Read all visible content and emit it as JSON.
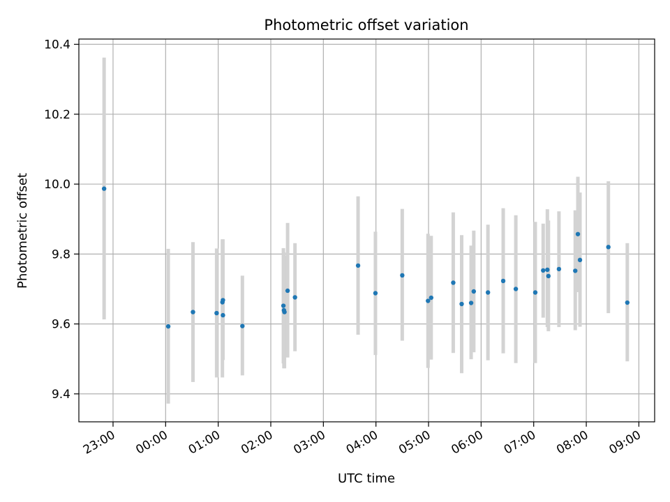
{
  "chart_data": {
    "type": "scatter",
    "title": "Photometric offset variation",
    "xlabel": "UTC time",
    "ylabel": "Photometric offset",
    "x_units": "hours relative to 00:00 UTC",
    "xlim": [
      -1.65,
      9.3
    ],
    "ylim": [
      9.32,
      10.415
    ],
    "x_ticks": [
      {
        "value": -1,
        "label": "23:00"
      },
      {
        "value": 0,
        "label": "00:00"
      },
      {
        "value": 1,
        "label": "01:00"
      },
      {
        "value": 2,
        "label": "02:00"
      },
      {
        "value": 3,
        "label": "03:00"
      },
      {
        "value": 4,
        "label": "04:00"
      },
      {
        "value": 5,
        "label": "05:00"
      },
      {
        "value": 6,
        "label": "06:00"
      },
      {
        "value": 7,
        "label": "07:00"
      },
      {
        "value": 8,
        "label": "08:00"
      },
      {
        "value": 9,
        "label": "09:00"
      }
    ],
    "y_ticks": [
      {
        "value": 9.4,
        "label": "9.4"
      },
      {
        "value": 9.6,
        "label": "9.6"
      },
      {
        "value": 9.8,
        "label": "9.8"
      },
      {
        "value": 10.0,
        "label": "10.0"
      },
      {
        "value": 10.2,
        "label": "10.2"
      },
      {
        "value": 10.4,
        "label": "10.4"
      }
    ],
    "grid": true,
    "colors": {
      "points": "#1f77b4",
      "errorbars": "#d3d3d3",
      "grid": "#b0b0b0",
      "axes": "#000000"
    },
    "points": [
      {
        "x": -1.17,
        "y": 9.987,
        "lo": 9.613,
        "hi": 10.362
      },
      {
        "x": 0.05,
        "y": 9.593,
        "lo": 9.372,
        "hi": 9.815
      },
      {
        "x": 0.52,
        "y": 9.634,
        "lo": 9.434,
        "hi": 9.834
      },
      {
        "x": 0.97,
        "y": 9.631,
        "lo": 9.447,
        "hi": 9.816
      },
      {
        "x": 1.08,
        "y": 9.662,
        "lo": 9.447,
        "hi": 9.842
      },
      {
        "x": 1.09,
        "y": 9.668,
        "lo": 9.497,
        "hi": 9.842
      },
      {
        "x": 1.09,
        "y": 9.625,
        "lo": 9.497,
        "hi": 9.797
      },
      {
        "x": 1.46,
        "y": 9.594,
        "lo": 9.453,
        "hi": 9.738
      },
      {
        "x": 2.24,
        "y": 9.652,
        "lo": 9.487,
        "hi": 9.817
      },
      {
        "x": 2.25,
        "y": 9.639,
        "lo": 9.473,
        "hi": 9.805
      },
      {
        "x": 2.26,
        "y": 9.634,
        "lo": 9.473,
        "hi": 9.795
      },
      {
        "x": 2.32,
        "y": 9.695,
        "lo": 9.504,
        "hi": 9.889
      },
      {
        "x": 2.46,
        "y": 9.676,
        "lo": 9.522,
        "hi": 9.831
      },
      {
        "x": 3.66,
        "y": 9.767,
        "lo": 9.569,
        "hi": 9.965
      },
      {
        "x": 3.99,
        "y": 9.688,
        "lo": 9.511,
        "hi": 9.864
      },
      {
        "x": 4.5,
        "y": 9.739,
        "lo": 9.552,
        "hi": 9.929
      },
      {
        "x": 4.99,
        "y": 9.666,
        "lo": 9.474,
        "hi": 9.858
      },
      {
        "x": 5.05,
        "y": 9.675,
        "lo": 9.498,
        "hi": 9.852
      },
      {
        "x": 5.47,
        "y": 9.718,
        "lo": 9.517,
        "hi": 9.919
      },
      {
        "x": 5.63,
        "y": 9.657,
        "lo": 9.459,
        "hi": 9.854
      },
      {
        "x": 5.81,
        "y": 9.66,
        "lo": 9.499,
        "hi": 9.824
      },
      {
        "x": 5.86,
        "y": 9.693,
        "lo": 9.519,
        "hi": 9.867
      },
      {
        "x": 6.13,
        "y": 9.69,
        "lo": 9.496,
        "hi": 9.884
      },
      {
        "x": 6.42,
        "y": 9.723,
        "lo": 9.516,
        "hi": 9.931
      },
      {
        "x": 6.66,
        "y": 9.7,
        "lo": 9.488,
        "hi": 9.911
      },
      {
        "x": 7.03,
        "y": 9.69,
        "lo": 9.488,
        "hi": 9.892
      },
      {
        "x": 7.18,
        "y": 9.753,
        "lo": 9.618,
        "hi": 9.887
      },
      {
        "x": 7.26,
        "y": 9.755,
        "lo": 9.591,
        "hi": 9.928
      },
      {
        "x": 7.28,
        "y": 9.737,
        "lo": 9.579,
        "hi": 9.896
      },
      {
        "x": 7.48,
        "y": 9.757,
        "lo": 9.591,
        "hi": 9.922
      },
      {
        "x": 7.79,
        "y": 9.752,
        "lo": 9.582,
        "hi": 9.925
      },
      {
        "x": 7.84,
        "y": 9.857,
        "lo": 9.691,
        "hi": 10.021
      },
      {
        "x": 7.88,
        "y": 9.783,
        "lo": 9.592,
        "hi": 9.976
      },
      {
        "x": 8.42,
        "y": 9.82,
        "lo": 9.631,
        "hi": 10.008
      },
      {
        "x": 8.78,
        "y": 9.661,
        "lo": 9.493,
        "hi": 9.831
      }
    ]
  }
}
